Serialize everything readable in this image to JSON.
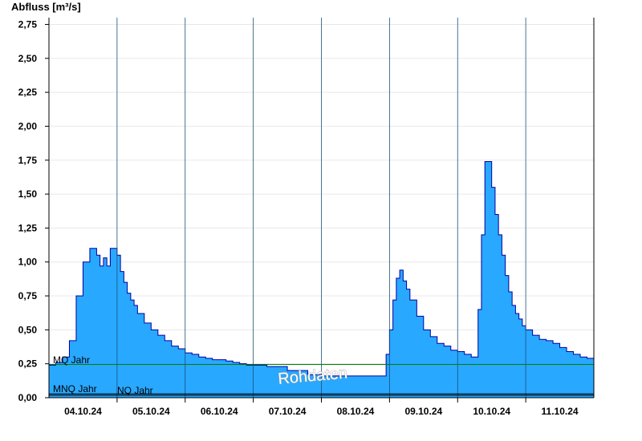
{
  "chart_data": {
    "type": "area",
    "ylabel": "Abfluss [m³/s]",
    "ylim": [
      0,
      2.8
    ],
    "yticks": [
      "0,00",
      "0,25",
      "0,50",
      "0,75",
      "1,00",
      "1,25",
      "1,50",
      "1,75",
      "2,00",
      "2,25",
      "2,50",
      "2,75"
    ],
    "ytick_values": [
      0,
      0.25,
      0.5,
      0.75,
      1.0,
      1.25,
      1.5,
      1.75,
      2.0,
      2.25,
      2.5,
      2.75
    ],
    "xlim": [
      0,
      8
    ],
    "xticks": [
      "04.10.24",
      "05.10.24",
      "06.10.24",
      "07.10.24",
      "08.10.24",
      "09.10.24",
      "10.10.24",
      "11.10.24"
    ],
    "xtick_positions": [
      0.5,
      1.5,
      2.5,
      3.5,
      4.5,
      5.5,
      6.5,
      7.5
    ],
    "day_boundaries": [
      1,
      2,
      3,
      4,
      5,
      6,
      7
    ],
    "grid": true,
    "fill_color": "#29a8ff",
    "line_color": "#0000a0",
    "series": [
      {
        "x": [
          0,
          0.1,
          0.2,
          0.3,
          0.4,
          0.5,
          0.6,
          0.7,
          0.75,
          0.8,
          0.85,
          0.9,
          0.95,
          1.0,
          1.05,
          1.1,
          1.15,
          1.2,
          1.25,
          1.3,
          1.4,
          1.5,
          1.6,
          1.7,
          1.8,
          1.9,
          2.0,
          2.1,
          2.2,
          2.3,
          2.4,
          2.5,
          2.6,
          2.7,
          2.8,
          2.9,
          3.0,
          3.2,
          3.5,
          3.8,
          4.0,
          4.2,
          4.5,
          4.9,
          4.95,
          5.0,
          5.05,
          5.1,
          5.15,
          5.2,
          5.25,
          5.3,
          5.4,
          5.5,
          5.6,
          5.7,
          5.8,
          5.9,
          6.0,
          6.1,
          6.2,
          6.3,
          6.35,
          6.4,
          6.45,
          6.5,
          6.55,
          6.6,
          6.65,
          6.7,
          6.75,
          6.8,
          6.85,
          6.9,
          6.95,
          7.0,
          7.1,
          7.2,
          7.3,
          7.4,
          7.5,
          7.6,
          7.7,
          7.8,
          7.9,
          8.0
        ],
        "values": [
          0.24,
          0.26,
          0.3,
          0.42,
          0.75,
          1.0,
          1.1,
          1.05,
          0.97,
          1.03,
          0.97,
          1.1,
          1.1,
          1.05,
          0.93,
          0.85,
          0.77,
          0.72,
          0.68,
          0.62,
          0.55,
          0.5,
          0.46,
          0.42,
          0.38,
          0.36,
          0.33,
          0.32,
          0.3,
          0.29,
          0.28,
          0.28,
          0.27,
          0.26,
          0.25,
          0.24,
          0.24,
          0.23,
          0.2,
          0.17,
          0.16,
          0.16,
          0.16,
          0.16,
          0.32,
          0.5,
          0.72,
          0.88,
          0.94,
          0.86,
          0.8,
          0.72,
          0.6,
          0.5,
          0.45,
          0.4,
          0.38,
          0.35,
          0.34,
          0.32,
          0.3,
          0.65,
          1.2,
          1.74,
          1.74,
          1.55,
          1.35,
          1.2,
          1.05,
          0.9,
          0.78,
          0.68,
          0.62,
          0.58,
          0.53,
          0.5,
          0.46,
          0.43,
          0.42,
          0.4,
          0.37,
          0.34,
          0.32,
          0.3,
          0.29,
          0.28
        ]
      }
    ],
    "reference_lines": [
      {
        "label": "MQ Jahr",
        "value": 0.245,
        "color": "#008000"
      },
      {
        "label": "MNQ Jahr",
        "value": 0.028,
        "color": "#000000"
      },
      {
        "label": "NQ Jahr",
        "value": 0.018,
        "color": "#000000"
      }
    ],
    "watermark": "Rohdaten"
  }
}
